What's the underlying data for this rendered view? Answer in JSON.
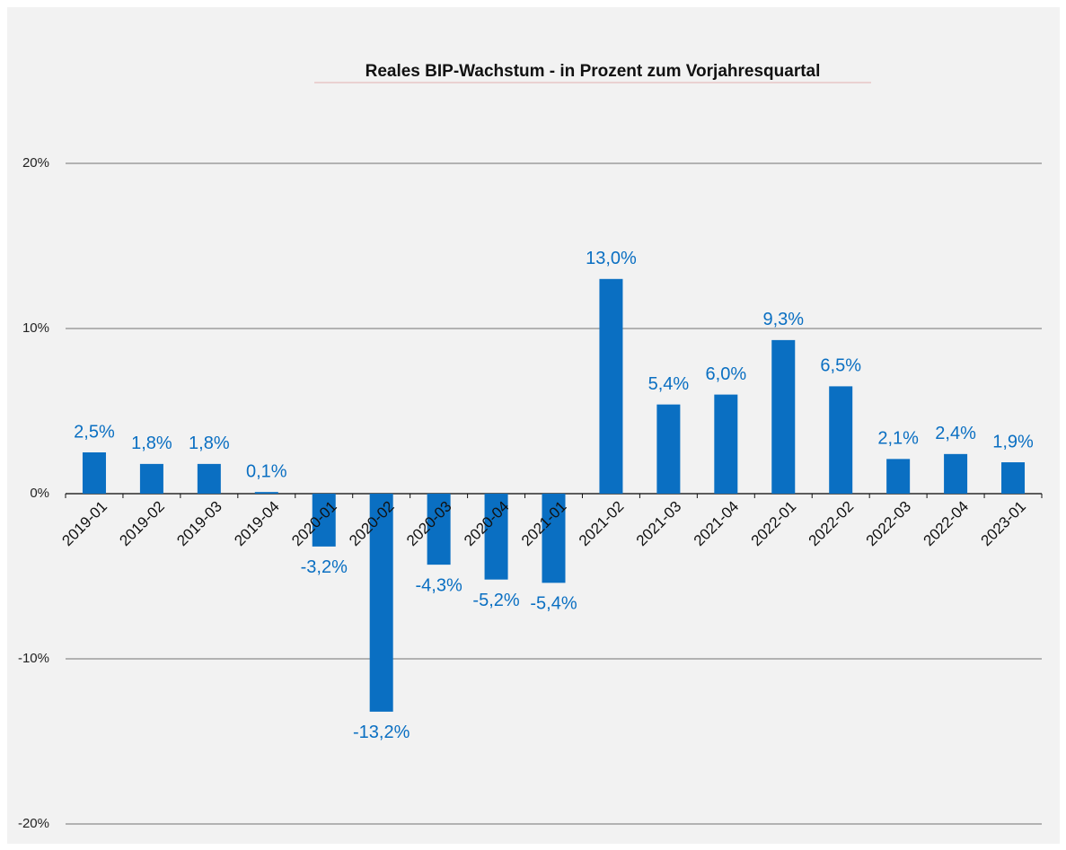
{
  "chart_data": {
    "type": "bar",
    "title": "Reales BIP-Wachstum - in Prozent zum Vorjahresquartal",
    "categories": [
      "2019-01",
      "2019-02",
      "2019-03",
      "2019-04",
      "2020-01",
      "2020-02",
      "2020-03",
      "2020-04",
      "2021-01",
      "2021-02",
      "2021-03",
      "2021-04",
      "2022-01",
      "2022-02",
      "2022-03",
      "2022-04",
      "2023-01"
    ],
    "values": [
      2.5,
      1.8,
      1.8,
      0.1,
      -3.2,
      -13.2,
      -4.3,
      -5.2,
      -5.4,
      13.0,
      5.4,
      6.0,
      9.3,
      6.5,
      2.1,
      2.4,
      1.9
    ],
    "value_labels": [
      "2,5%",
      "1,8%",
      "1,8%",
      "0,1%",
      "-3,2%",
      "-13,2%",
      "-4,3%",
      "-5,2%",
      "-5,4%",
      "13,0%",
      "5,4%",
      "6,0%",
      "9,3%",
      "6,5%",
      "2,1%",
      "2,4%",
      "1,9%"
    ],
    "color": "#0a6fc2",
    "ylim": [
      -20,
      20
    ],
    "yticks": [
      {
        "value": -20,
        "label": "-20%"
      },
      {
        "value": -10,
        "label": "-10%"
      },
      {
        "value": 0,
        "label": "0%"
      },
      {
        "value": 10,
        "label": "10%"
      },
      {
        "value": 20,
        "label": "20%"
      }
    ],
    "grid": true
  }
}
